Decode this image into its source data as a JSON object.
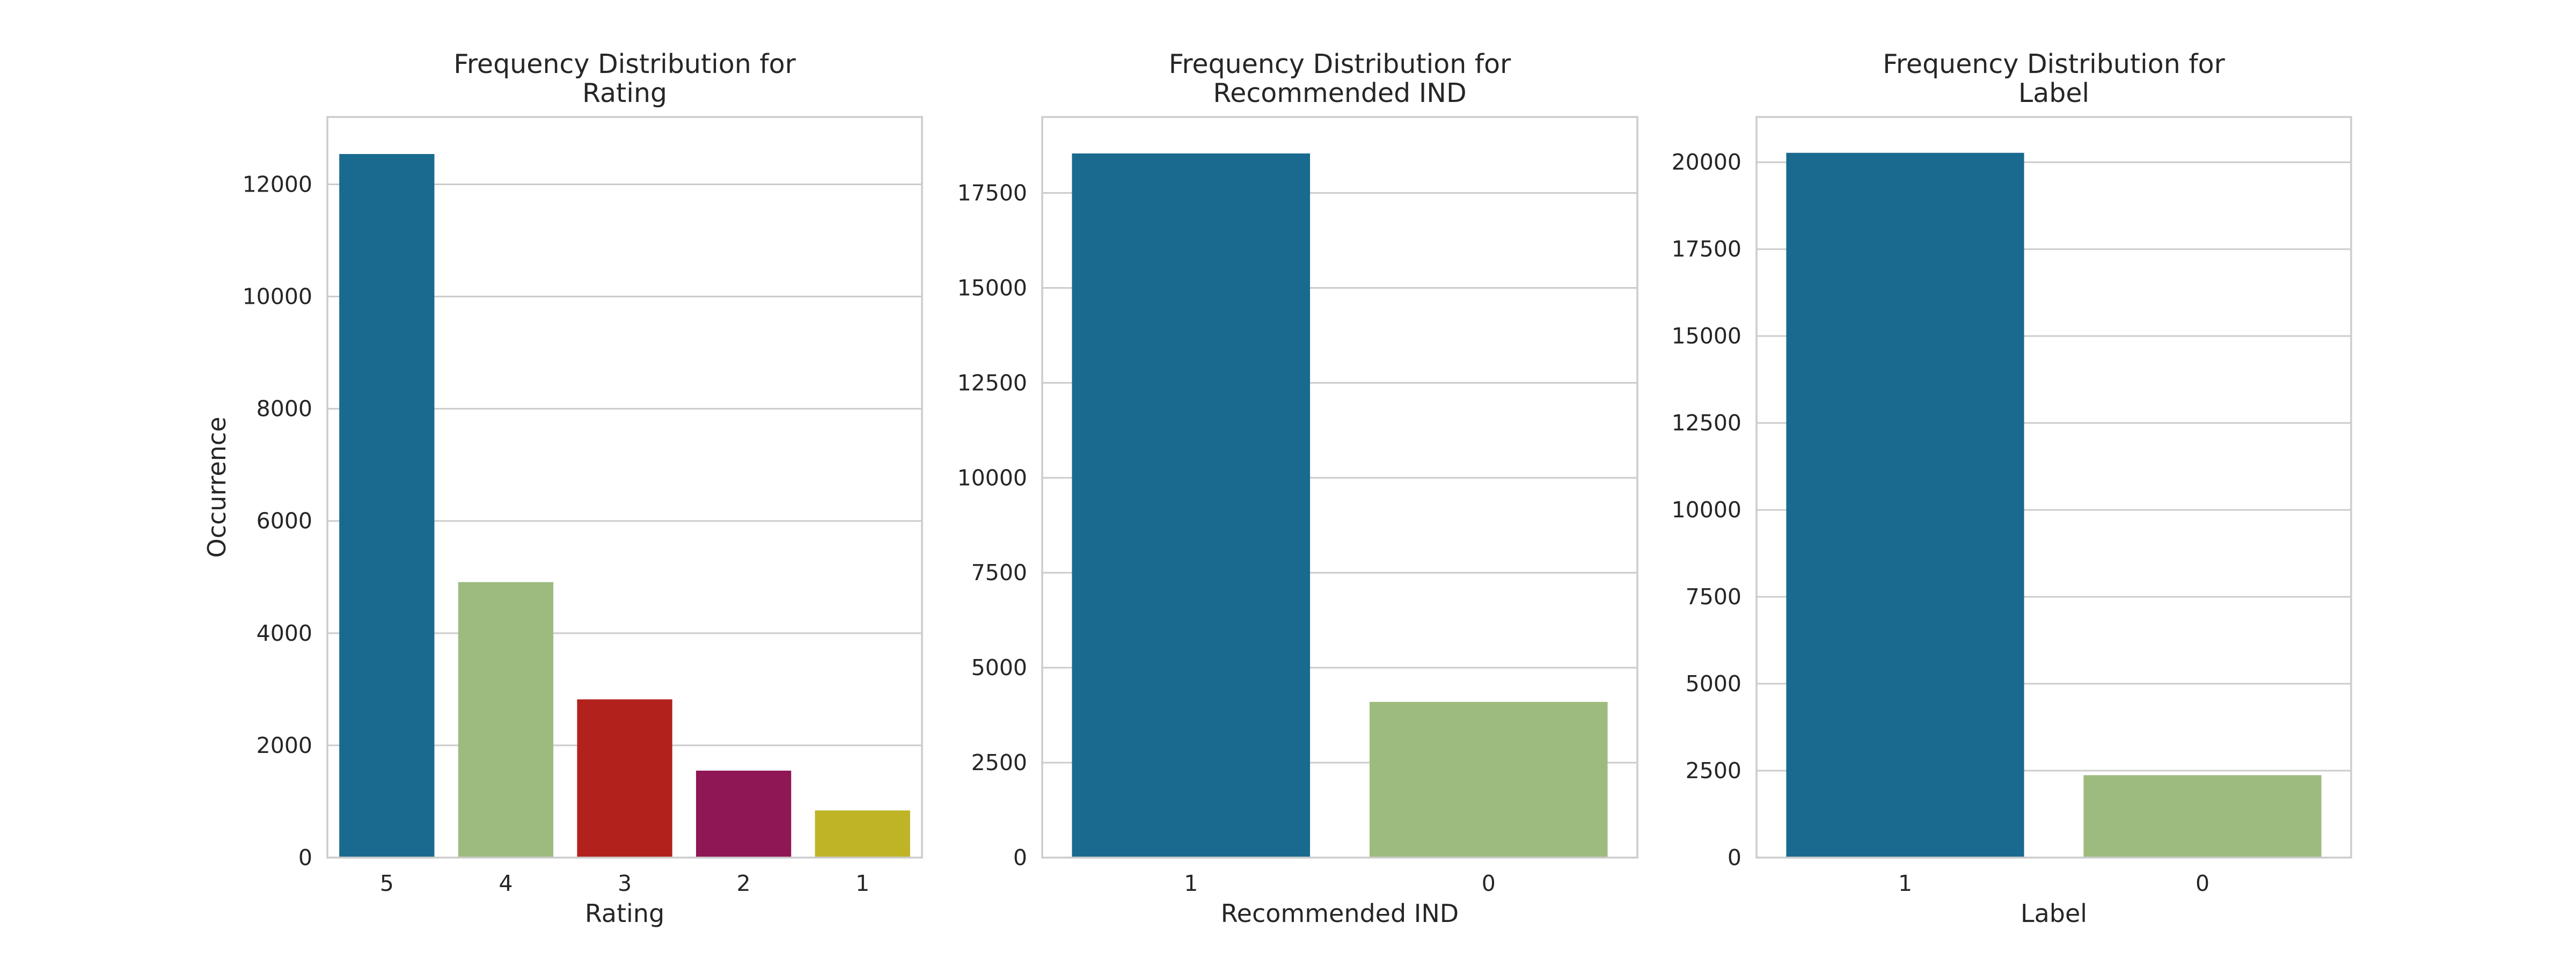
{
  "chart_data": [
    {
      "type": "bar",
      "title": "Frequency Distribution for\nRating",
      "xlabel": "Rating",
      "ylabel": "Occurrence",
      "categories": [
        "5",
        "4",
        "3",
        "2",
        "1"
      ],
      "values": [
        12540,
        4910,
        2820,
        1550,
        840
      ],
      "yticks": [
        0,
        2000,
        4000,
        6000,
        8000,
        10000,
        12000
      ],
      "ylim": [
        0,
        13200
      ],
      "grid": true,
      "colors": [
        "#1a6a8f",
        "#9dbb7e",
        "#b3211c",
        "#8f1756",
        "#bfb426"
      ]
    },
    {
      "type": "bar",
      "title": "Frequency Distribution for\nRecommended IND",
      "xlabel": "Recommended IND",
      "ylabel": "",
      "categories": [
        "1",
        "0"
      ],
      "values": [
        18540,
        4100
      ],
      "yticks": [
        0,
        2500,
        5000,
        7500,
        10000,
        12500,
        15000,
        17500
      ],
      "ylim": [
        0,
        19500
      ],
      "grid": true,
      "colors": [
        "#1a6a8f",
        "#9dbb7e"
      ]
    },
    {
      "type": "bar",
      "title": "Frequency Distribution for\nLabel",
      "xlabel": "Label",
      "ylabel": "",
      "categories": [
        "1",
        "0"
      ],
      "values": [
        20270,
        2370
      ],
      "yticks": [
        0,
        2500,
        5000,
        7500,
        10000,
        12500,
        15000,
        17500,
        20000
      ],
      "ylim": [
        0,
        21300
      ],
      "grid": true,
      "colors": [
        "#1a6a8f",
        "#9dbb7e"
      ]
    }
  ]
}
